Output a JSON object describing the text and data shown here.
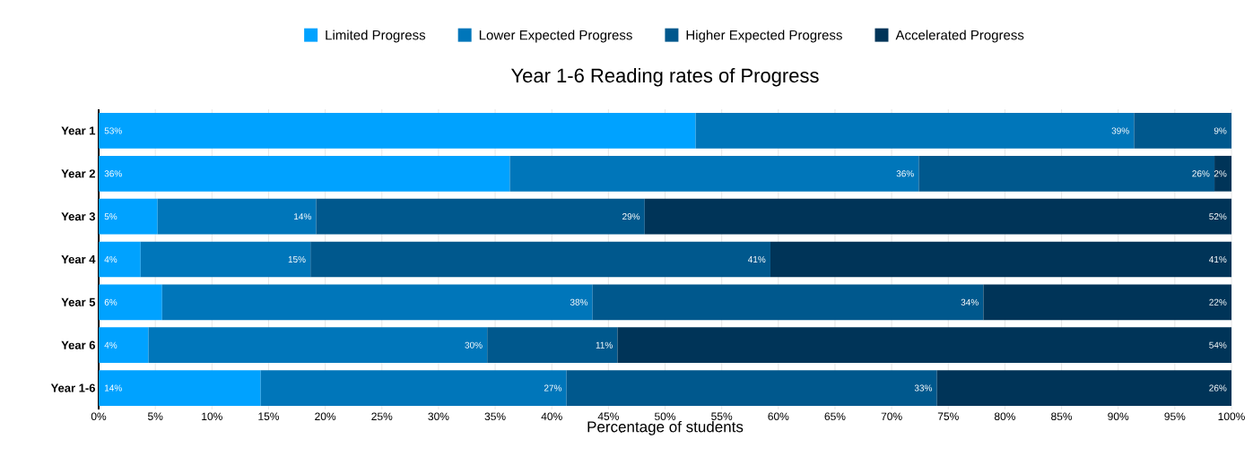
{
  "chart_data": {
    "type": "bar",
    "orientation": "horizontal",
    "stacked": true,
    "title": "Year 1-6 Reading rates of Progress",
    "xlabel": "Percentage of students",
    "categories": [
      "Year 1",
      "Year 2",
      "Year 3",
      "Year 4",
      "Year 5",
      "Year 6",
      "Year 1-6"
    ],
    "series": [
      {
        "name": "Limited Progress",
        "color": "#00a2ff",
        "values": [
          52.7,
          36.3,
          5.2,
          3.7,
          5.6,
          4.4,
          14.3
        ],
        "value_labels": [
          "53%",
          "36%",
          "5%",
          "4%",
          "6%",
          "4%",
          "14%"
        ]
      },
      {
        "name": "Lower Expected Progress",
        "color": "#0076ba",
        "values": [
          38.7,
          36.1,
          14.0,
          15.0,
          38.0,
          29.9,
          27.0
        ],
        "value_labels": [
          "39%",
          "36%",
          "14%",
          "15%",
          "38%",
          "30%",
          "27%"
        ]
      },
      {
        "name": "Higher Expected Progress",
        "color": "#00588d",
        "values": [
          8.6,
          26.1,
          29.0,
          40.6,
          34.5,
          11.5,
          32.7
        ],
        "value_labels": [
          "9%",
          "26%",
          "29%",
          "41%",
          "34%",
          "11%",
          "33%"
        ]
      },
      {
        "name": "Accelerated Progress",
        "color": "#003458",
        "values": [
          null,
          1.5,
          51.8,
          40.7,
          21.9,
          54.2,
          26.0
        ],
        "value_labels": [
          null,
          "2%",
          "52%",
          "41%",
          "22%",
          "54%",
          "26%"
        ]
      }
    ],
    "xlim": [
      0,
      100
    ],
    "xticks": [
      {
        "value": 0,
        "label": "0%"
      },
      {
        "value": 5,
        "label": "5%"
      },
      {
        "value": 10,
        "label": "10%"
      },
      {
        "value": 15,
        "label": "15%"
      },
      {
        "value": 20,
        "label": "20%"
      },
      {
        "value": 25,
        "label": "25%"
      },
      {
        "value": 30,
        "label": "30%"
      },
      {
        "value": 35,
        "label": "35%"
      },
      {
        "value": 40,
        "label": "40%"
      },
      {
        "value": 45,
        "label": "45%"
      },
      {
        "value": 50,
        "label": "50%"
      },
      {
        "value": 55,
        "label": "55%"
      },
      {
        "value": 60,
        "label": "60%"
      },
      {
        "value": 65,
        "label": "65%"
      },
      {
        "value": 70,
        "label": "70%"
      },
      {
        "value": 75,
        "label": "75%"
      },
      {
        "value": 80,
        "label": "80%"
      },
      {
        "value": 85,
        "label": "85%"
      },
      {
        "value": 90,
        "label": "90%"
      },
      {
        "value": 95,
        "label": "95%"
      },
      {
        "value": 100,
        "label": "100%"
      }
    ],
    "grid": "x",
    "legend": "top"
  }
}
